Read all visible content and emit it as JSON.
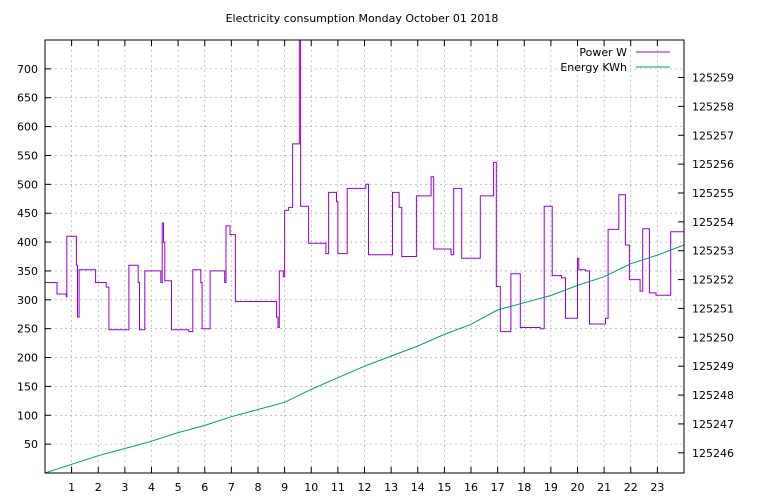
{
  "chart_data": {
    "type": "line",
    "title": "Electricity consumption Monday October 01 2018",
    "xlabel": "",
    "ylabel": "",
    "xlim": [
      0,
      24
    ],
    "ylim_left": [
      0,
      750
    ],
    "ylim_right": [
      125245.3,
      125260.3
    ],
    "grid": true,
    "legend_position": "top-right",
    "x_ticks": [
      1,
      2,
      3,
      4,
      5,
      6,
      7,
      8,
      9,
      10,
      11,
      12,
      13,
      14,
      15,
      16,
      17,
      18,
      19,
      20,
      21,
      22,
      23
    ],
    "y_left_ticks": [
      50,
      100,
      150,
      200,
      250,
      300,
      350,
      400,
      450,
      500,
      550,
      600,
      650,
      700
    ],
    "y_right_ticks": [
      125246,
      125247,
      125248,
      125249,
      125250,
      125251,
      125252,
      125253,
      125254,
      125255,
      125256,
      125257,
      125258,
      125259
    ],
    "series": [
      {
        "name": "Power W",
        "axis": "left",
        "color": "#9400d3",
        "step": true,
        "points": [
          [
            0,
            330
          ],
          [
            0.45,
            310
          ],
          [
            0.8,
            305
          ],
          [
            0.82,
            410
          ],
          [
            1.18,
            360
          ],
          [
            1.22,
            270
          ],
          [
            1.28,
            352
          ],
          [
            1.9,
            330
          ],
          [
            2.3,
            322
          ],
          [
            2.4,
            248
          ],
          [
            3.1,
            248
          ],
          [
            3.15,
            360
          ],
          [
            3.5,
            330
          ],
          [
            3.55,
            248
          ],
          [
            3.75,
            350
          ],
          [
            4.35,
            330
          ],
          [
            4.4,
            433
          ],
          [
            4.45,
            400
          ],
          [
            4.5,
            333
          ],
          [
            4.75,
            248
          ],
          [
            5.4,
            245
          ],
          [
            5.55,
            352
          ],
          [
            5.85,
            330
          ],
          [
            5.9,
            250
          ],
          [
            6.2,
            350
          ],
          [
            6.75,
            330
          ],
          [
            6.8,
            428
          ],
          [
            6.95,
            413
          ],
          [
            7.15,
            297
          ],
          [
            8.7,
            270
          ],
          [
            8.75,
            252
          ],
          [
            8.8,
            350
          ],
          [
            8.95,
            340
          ],
          [
            9.0,
            455
          ],
          [
            9.15,
            460
          ],
          [
            9.3,
            570
          ],
          [
            9.55,
            760
          ],
          [
            9.6,
            462
          ],
          [
            9.9,
            398
          ],
          [
            10.55,
            380
          ],
          [
            10.65,
            486
          ],
          [
            10.95,
            470
          ],
          [
            11.0,
            380
          ],
          [
            11.35,
            493
          ],
          [
            12.05,
            500
          ],
          [
            12.15,
            378
          ],
          [
            12.95,
            378
          ],
          [
            13.05,
            486
          ],
          [
            13.3,
            460
          ],
          [
            13.4,
            375
          ],
          [
            13.95,
            480
          ],
          [
            14.5,
            513
          ],
          [
            14.6,
            388
          ],
          [
            15.25,
            378
          ],
          [
            15.35,
            493
          ],
          [
            15.65,
            372
          ],
          [
            16.35,
            480
          ],
          [
            16.85,
            538
          ],
          [
            16.95,
            323
          ],
          [
            17.1,
            245
          ],
          [
            17.5,
            345
          ],
          [
            17.85,
            252
          ],
          [
            18.6,
            250
          ],
          [
            18.75,
            462
          ],
          [
            19.05,
            342
          ],
          [
            19.4,
            338
          ],
          [
            19.55,
            268
          ],
          [
            20.0,
            372
          ],
          [
            20.05,
            352
          ],
          [
            20.3,
            350
          ],
          [
            20.45,
            258
          ],
          [
            21.05,
            268
          ],
          [
            21.15,
            422
          ],
          [
            21.55,
            482
          ],
          [
            21.8,
            395
          ],
          [
            21.95,
            335
          ],
          [
            22.35,
            315
          ],
          [
            22.45,
            423
          ],
          [
            22.7,
            312
          ],
          [
            22.95,
            308
          ],
          [
            23.5,
            418
          ],
          [
            24,
            418
          ]
        ]
      },
      {
        "name": "Energy KWh",
        "axis": "right",
        "color": "#009e73",
        "step": false,
        "points": [
          [
            0,
            125245.3
          ],
          [
            1,
            125245.6
          ],
          [
            2,
            125245.9
          ],
          [
            3,
            125246.15
          ],
          [
            4,
            125246.4
          ],
          [
            5,
            125246.7
          ],
          [
            6,
            125246.95
          ],
          [
            7,
            125247.25
          ],
          [
            8,
            125247.5
          ],
          [
            9,
            125247.75
          ],
          [
            10,
            125248.2
          ],
          [
            11,
            125248.6
          ],
          [
            12,
            125249.0
          ],
          [
            13,
            125249.35
          ],
          [
            14,
            125249.7
          ],
          [
            15,
            125250.1
          ],
          [
            16,
            125250.45
          ],
          [
            17,
            125250.95
          ],
          [
            18,
            125251.2
          ],
          [
            19,
            125251.45
          ],
          [
            20,
            125251.8
          ],
          [
            21,
            125252.1
          ],
          [
            22,
            125252.55
          ],
          [
            23,
            125252.85
          ],
          [
            24,
            125253.2
          ]
        ]
      }
    ]
  }
}
